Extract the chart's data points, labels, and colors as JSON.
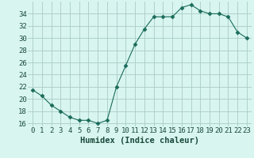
{
  "x": [
    0,
    1,
    2,
    3,
    4,
    5,
    6,
    7,
    8,
    9,
    10,
    11,
    12,
    13,
    14,
    15,
    16,
    17,
    18,
    19,
    20,
    21,
    22,
    23
  ],
  "y": [
    21.5,
    20.5,
    19.0,
    18.0,
    17.0,
    16.5,
    16.5,
    16.0,
    16.5,
    22.0,
    25.5,
    29.0,
    31.5,
    33.5,
    33.5,
    33.5,
    35.0,
    35.5,
    34.5,
    34.0,
    34.0,
    33.5,
    31.0,
    30.0
  ],
  "xlabel": "Humidex (Indice chaleur)",
  "ylim": [
    15.5,
    36
  ],
  "xlim": [
    -0.5,
    23.5
  ],
  "yticks": [
    16,
    18,
    20,
    22,
    24,
    26,
    28,
    30,
    32,
    34
  ],
  "xticks": [
    0,
    1,
    2,
    3,
    4,
    5,
    6,
    7,
    8,
    9,
    10,
    11,
    12,
    13,
    14,
    15,
    16,
    17,
    18,
    19,
    20,
    21,
    22,
    23
  ],
  "line_color": "#1a6b5a",
  "marker": "D",
  "marker_size": 2.5,
  "bg_color": "#d8f5f0",
  "grid_color": "#aaccc4",
  "label_color": "#1a4a3a",
  "tick_label_fontsize": 6.5,
  "xlabel_fontsize": 7.5
}
